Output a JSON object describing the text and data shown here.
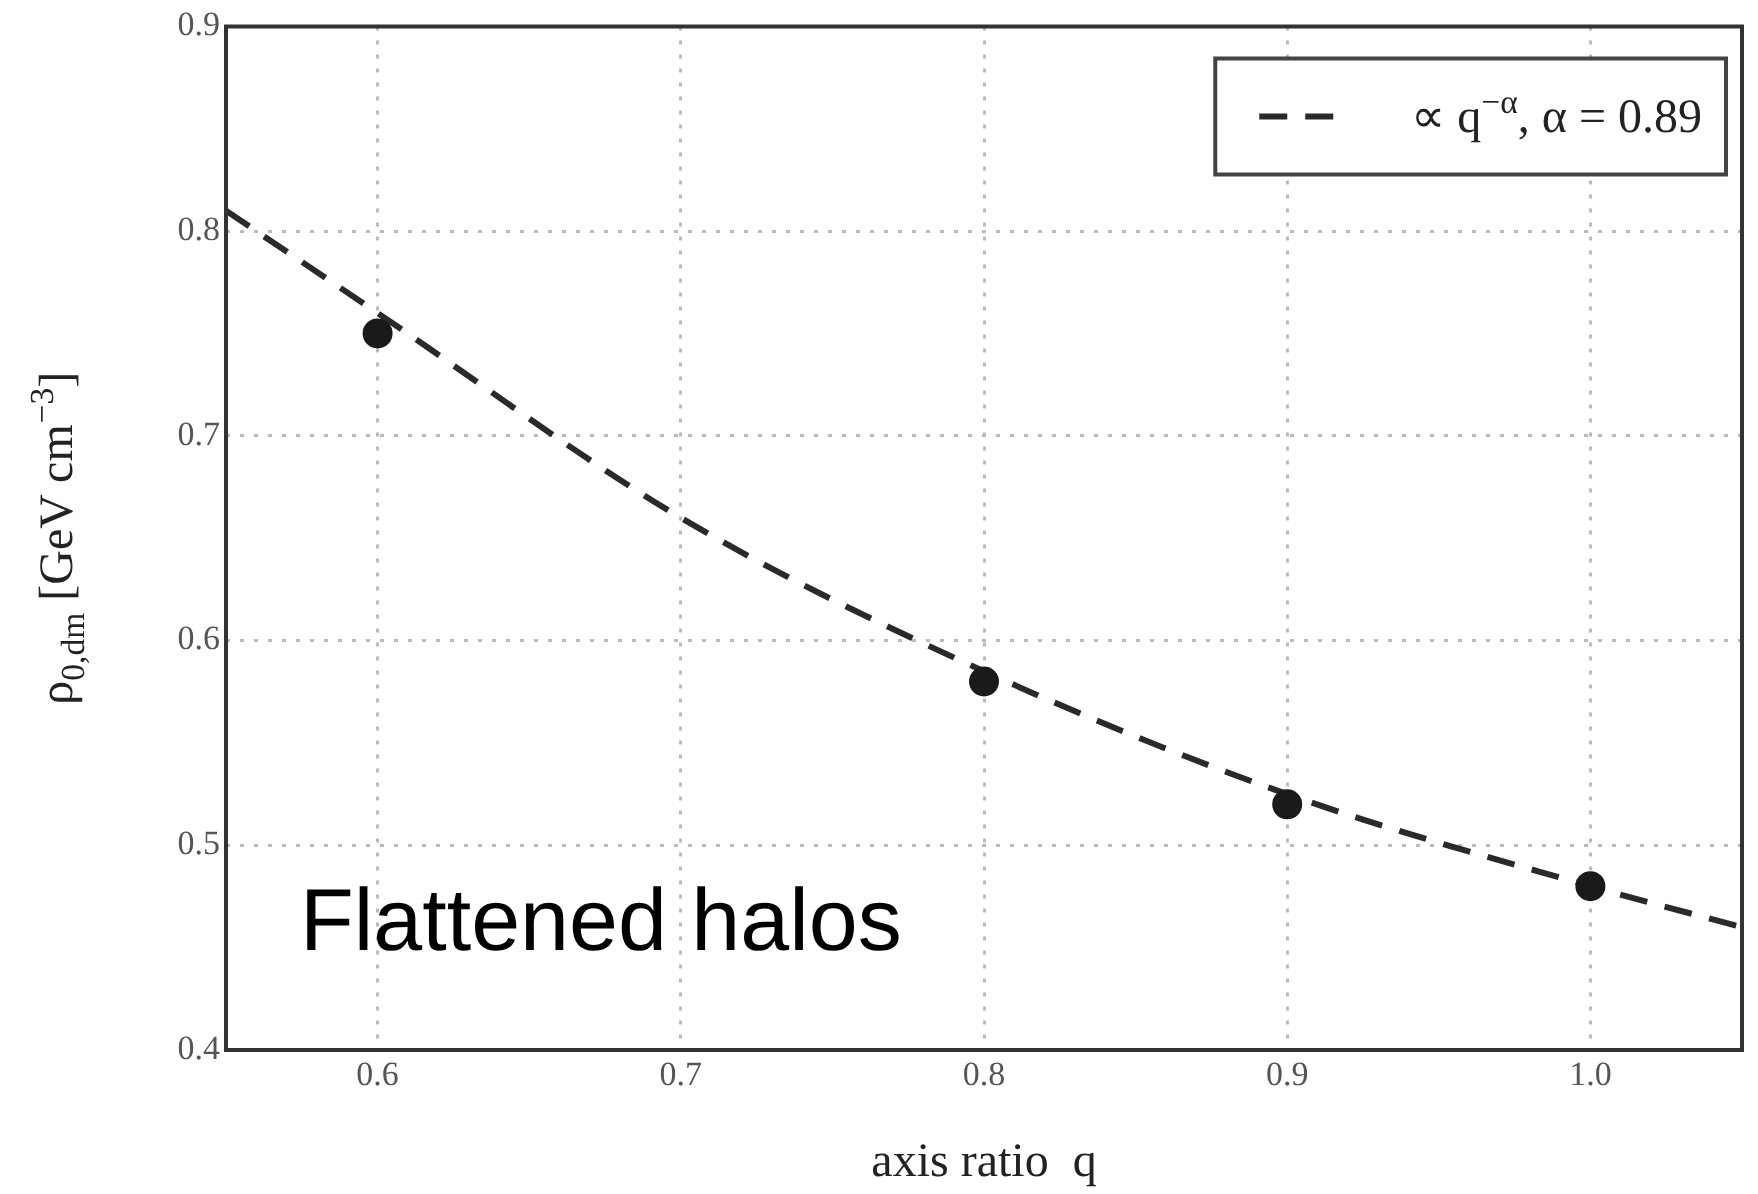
{
  "chart_data": {
    "type": "scatter",
    "xlabel": "axis ratio  q",
    "ylabel": "ρ$_{0,dm}$ [GeV cm$^{−3}$]",
    "xlim": [
      0.55,
      1.05
    ],
    "xticks": [
      {
        "value": 0.6,
        "label": "0.6"
      },
      {
        "value": 0.7,
        "label": "0.7"
      },
      {
        "value": 0.8,
        "label": "0.8"
      },
      {
        "value": 0.9,
        "label": "0.9"
      },
      {
        "value": 1.0,
        "label": "1.0"
      }
    ],
    "ylim": [
      0.4,
      0.9
    ],
    "yticks": [
      {
        "value": 0.4,
        "label": "0.4"
      },
      {
        "value": 0.5,
        "label": "0.5"
      },
      {
        "value": 0.6,
        "label": "0.6"
      },
      {
        "value": 0.7,
        "label": "0.7"
      },
      {
        "value": 0.8,
        "label": "0.8"
      },
      {
        "value": 0.9,
        "label": "0.9"
      }
    ],
    "grid": true,
    "legend": "top right",
    "annotations": [
      "Flattened halos"
    ],
    "series": [
      {
        "color": "#1a1a1a",
        "marker": "circle",
        "x": [
          0.6,
          0.8,
          0.9,
          1.0
        ],
        "values": [
          0.75,
          0.58,
          0.52,
          0.48
        ]
      },
      {
        "type": "line",
        "name": "∝ q$^{−α}$, α = 0.89",
        "color": "#2a2a2a",
        "line_style": "dashed",
        "marker": "none",
        "x": [
          0.55,
          0.6,
          0.7,
          0.8,
          0.9,
          1.0,
          1.05
        ],
        "values": [
          0.81,
          0.76,
          0.66,
          0.585,
          0.525,
          0.48,
          0.46
        ]
      }
    ]
  }
}
